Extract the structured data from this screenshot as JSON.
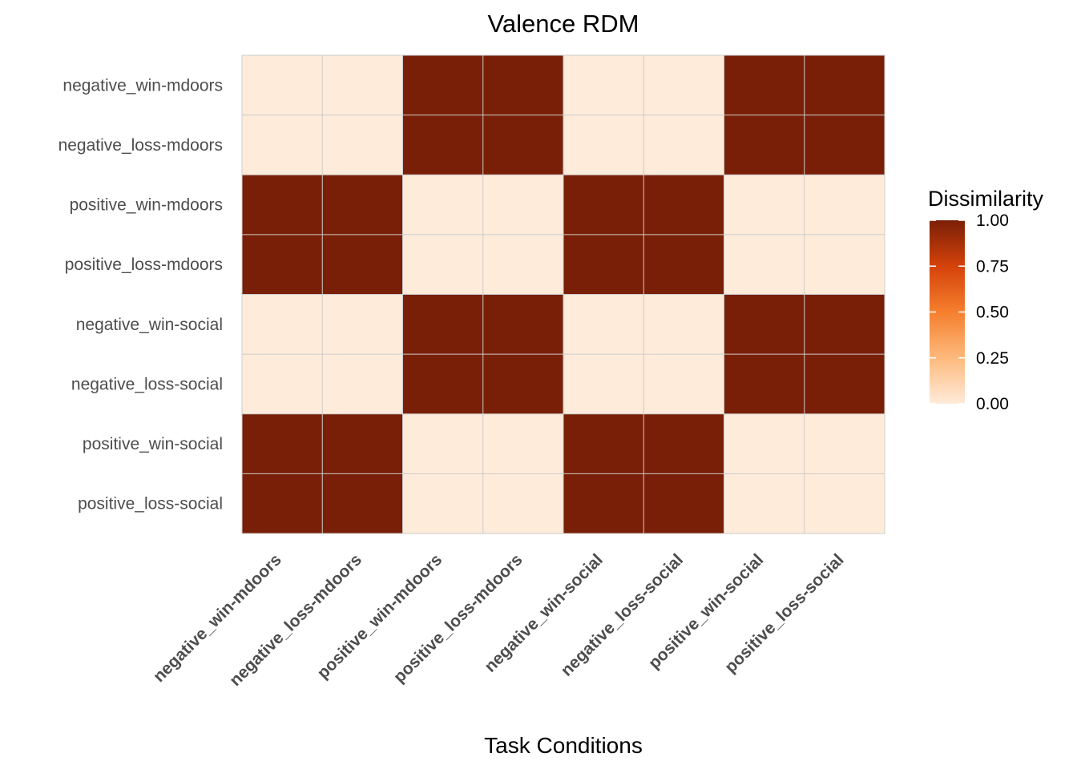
{
  "chart_data": {
    "type": "heatmap",
    "title": "Valence RDM",
    "xlabel": "Task Conditions",
    "ylabel": "",
    "x_categories": [
      "negative_win-mdoors",
      "negative_loss-mdoors",
      "positive_win-mdoors",
      "positive_loss-mdoors",
      "negative_win-social",
      "negative_loss-social",
      "positive_win-social",
      "positive_loss-social"
    ],
    "y_categories": [
      "negative_win-mdoors",
      "negative_loss-mdoors",
      "positive_win-mdoors",
      "positive_loss-mdoors",
      "negative_win-social",
      "negative_loss-social",
      "positive_win-social",
      "positive_loss-social"
    ],
    "values": [
      [
        0,
        0,
        1,
        1,
        0,
        0,
        1,
        1
      ],
      [
        0,
        0,
        1,
        1,
        0,
        0,
        1,
        1
      ],
      [
        1,
        1,
        0,
        0,
        1,
        1,
        0,
        0
      ],
      [
        1,
        1,
        0,
        0,
        1,
        1,
        0,
        0
      ],
      [
        0,
        0,
        1,
        1,
        0,
        0,
        1,
        1
      ],
      [
        0,
        0,
        1,
        1,
        0,
        0,
        1,
        1
      ],
      [
        1,
        1,
        0,
        0,
        1,
        1,
        0,
        0
      ],
      [
        1,
        1,
        0,
        0,
        1,
        1,
        0,
        0
      ]
    ],
    "legend": {
      "title": "Dissimilarity",
      "range": [
        0,
        1
      ],
      "ticks": [
        "0.00",
        "0.25",
        "0.50",
        "0.75",
        "1.00"
      ],
      "placement": "right"
    },
    "colors": {
      "low": "#FEEBD9",
      "stops": [
        "#FEEBD9",
        "#FDB97C",
        "#F57F2E",
        "#D5420A",
        "#7A1F07"
      ],
      "high": "#7A1F07",
      "grid": "#CCCCCC",
      "axis_text": "#4D4D4D"
    },
    "grid": true
  }
}
